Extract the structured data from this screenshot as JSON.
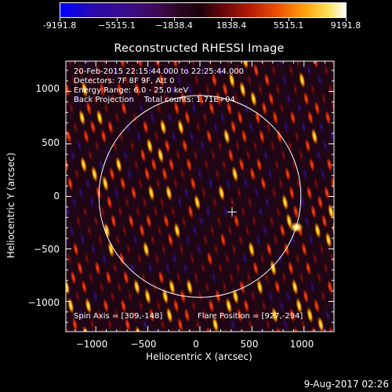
{
  "colorbar": {
    "tick_labels": [
      "-9191.8",
      "−5515.1",
      "−1838.4",
      "1838.4",
      "5515.1",
      "9191.8"
    ],
    "min": -9191.8,
    "max": 9191.8
  },
  "title": "Reconstructed RHESSI Image",
  "annotations": {
    "line1": "20-Feb-2015 22:15:44.000 to 22:25:44.000",
    "line2": "Detectors: 7F 8F 9F, Att 0",
    "line3": "Energy Range: 6.0 - 25.0 keV",
    "line4": "Back Projection    Total counts: 1.71E+04",
    "spin_axis": "Spin Axis = [309,-148]",
    "flare_position": "Flare Position = [927,-294]"
  },
  "axes": {
    "xlabel": "Heliocentric X (arcsec)",
    "ylabel": "Heliocentric Y (arcsec)",
    "xticks": [
      "−1000",
      "−500",
      "0",
      "500",
      "1000"
    ],
    "yticks": [
      "1000",
      "500",
      "0",
      "−500",
      "−1000"
    ],
    "xrange": [
      -1288,
      1288
    ],
    "yrange": [
      -1288,
      1288
    ]
  },
  "solar_limb_radius_arcsec": 970,
  "spin_axis_xy": [
    309,
    -148
  ],
  "flare_xy": [
    927,
    -294
  ],
  "timestamp": "9-Aug-2017 02:26",
  "colors": {
    "background": "#000000",
    "foreground": "#ffffff"
  }
}
